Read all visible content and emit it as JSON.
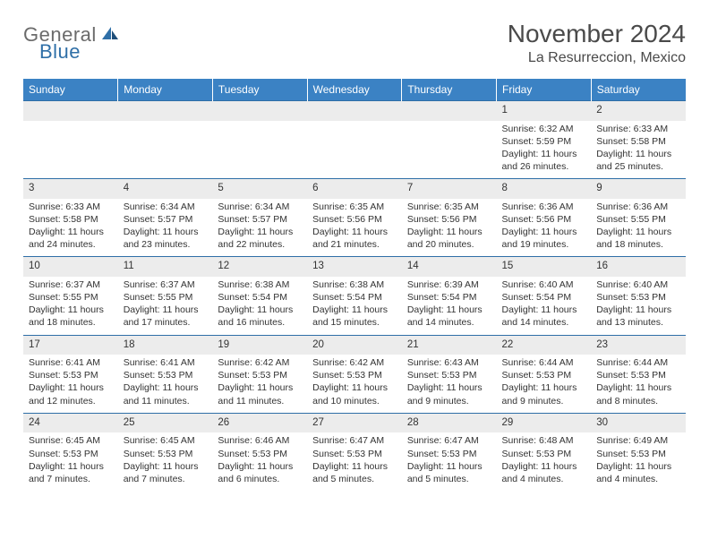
{
  "logo": {
    "text1": "General",
    "text2": "Blue"
  },
  "title": "November 2024",
  "location": "La Resurreccion, Mexico",
  "accent_color": "#3b82c4",
  "border_color": "#2f6fa7",
  "daynum_bg": "#ececec",
  "text_color": "#333333",
  "headers": [
    "Sunday",
    "Monday",
    "Tuesday",
    "Wednesday",
    "Thursday",
    "Friday",
    "Saturday"
  ],
  "weeks": [
    {
      "nums": [
        "",
        "",
        "",
        "",
        "",
        "1",
        "2"
      ],
      "details": [
        "",
        "",
        "",
        "",
        "",
        "Sunrise: 6:32 AM\nSunset: 5:59 PM\nDaylight: 11 hours and 26 minutes.",
        "Sunrise: 6:33 AM\nSunset: 5:58 PM\nDaylight: 11 hours and 25 minutes."
      ]
    },
    {
      "nums": [
        "3",
        "4",
        "5",
        "6",
        "7",
        "8",
        "9"
      ],
      "details": [
        "Sunrise: 6:33 AM\nSunset: 5:58 PM\nDaylight: 11 hours and 24 minutes.",
        "Sunrise: 6:34 AM\nSunset: 5:57 PM\nDaylight: 11 hours and 23 minutes.",
        "Sunrise: 6:34 AM\nSunset: 5:57 PM\nDaylight: 11 hours and 22 minutes.",
        "Sunrise: 6:35 AM\nSunset: 5:56 PM\nDaylight: 11 hours and 21 minutes.",
        "Sunrise: 6:35 AM\nSunset: 5:56 PM\nDaylight: 11 hours and 20 minutes.",
        "Sunrise: 6:36 AM\nSunset: 5:56 PM\nDaylight: 11 hours and 19 minutes.",
        "Sunrise: 6:36 AM\nSunset: 5:55 PM\nDaylight: 11 hours and 18 minutes."
      ]
    },
    {
      "nums": [
        "10",
        "11",
        "12",
        "13",
        "14",
        "15",
        "16"
      ],
      "details": [
        "Sunrise: 6:37 AM\nSunset: 5:55 PM\nDaylight: 11 hours and 18 minutes.",
        "Sunrise: 6:37 AM\nSunset: 5:55 PM\nDaylight: 11 hours and 17 minutes.",
        "Sunrise: 6:38 AM\nSunset: 5:54 PM\nDaylight: 11 hours and 16 minutes.",
        "Sunrise: 6:38 AM\nSunset: 5:54 PM\nDaylight: 11 hours and 15 minutes.",
        "Sunrise: 6:39 AM\nSunset: 5:54 PM\nDaylight: 11 hours and 14 minutes.",
        "Sunrise: 6:40 AM\nSunset: 5:54 PM\nDaylight: 11 hours and 14 minutes.",
        "Sunrise: 6:40 AM\nSunset: 5:53 PM\nDaylight: 11 hours and 13 minutes."
      ]
    },
    {
      "nums": [
        "17",
        "18",
        "19",
        "20",
        "21",
        "22",
        "23"
      ],
      "details": [
        "Sunrise: 6:41 AM\nSunset: 5:53 PM\nDaylight: 11 hours and 12 minutes.",
        "Sunrise: 6:41 AM\nSunset: 5:53 PM\nDaylight: 11 hours and 11 minutes.",
        "Sunrise: 6:42 AM\nSunset: 5:53 PM\nDaylight: 11 hours and 11 minutes.",
        "Sunrise: 6:42 AM\nSunset: 5:53 PM\nDaylight: 11 hours and 10 minutes.",
        "Sunrise: 6:43 AM\nSunset: 5:53 PM\nDaylight: 11 hours and 9 minutes.",
        "Sunrise: 6:44 AM\nSunset: 5:53 PM\nDaylight: 11 hours and 9 minutes.",
        "Sunrise: 6:44 AM\nSunset: 5:53 PM\nDaylight: 11 hours and 8 minutes."
      ]
    },
    {
      "nums": [
        "24",
        "25",
        "26",
        "27",
        "28",
        "29",
        "30"
      ],
      "details": [
        "Sunrise: 6:45 AM\nSunset: 5:53 PM\nDaylight: 11 hours and 7 minutes.",
        "Sunrise: 6:45 AM\nSunset: 5:53 PM\nDaylight: 11 hours and 7 minutes.",
        "Sunrise: 6:46 AM\nSunset: 5:53 PM\nDaylight: 11 hours and 6 minutes.",
        "Sunrise: 6:47 AM\nSunset: 5:53 PM\nDaylight: 11 hours and 5 minutes.",
        "Sunrise: 6:47 AM\nSunset: 5:53 PM\nDaylight: 11 hours and 5 minutes.",
        "Sunrise: 6:48 AM\nSunset: 5:53 PM\nDaylight: 11 hours and 4 minutes.",
        "Sunrise: 6:49 AM\nSunset: 5:53 PM\nDaylight: 11 hours and 4 minutes."
      ]
    }
  ]
}
